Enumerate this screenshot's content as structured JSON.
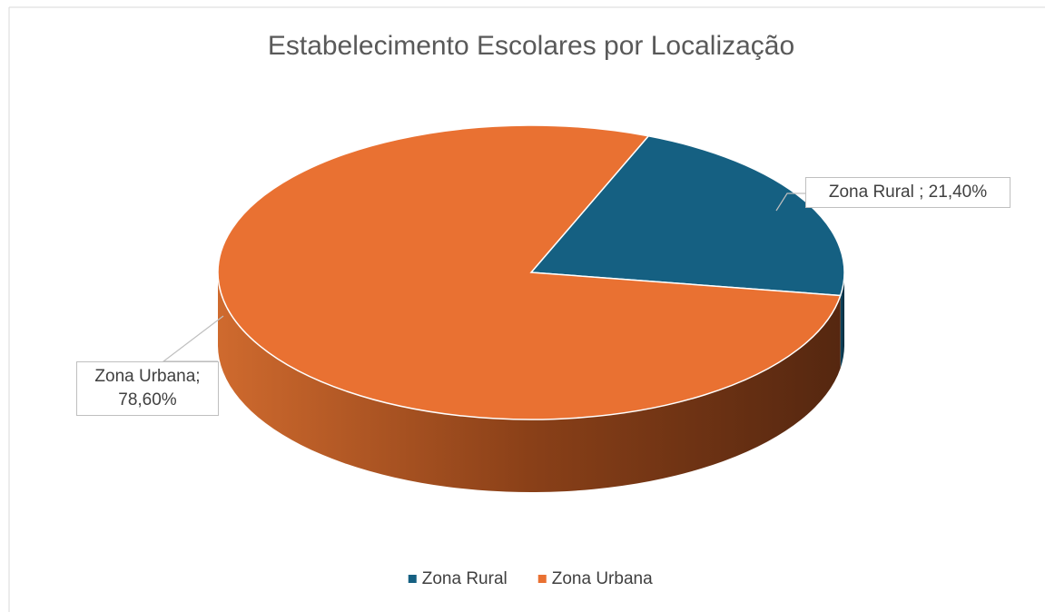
{
  "chart_data": {
    "type": "pie3d",
    "title": "Estabelecimento Escolares por Localização",
    "categories": [
      "Zona Rural",
      "Zona Urbana"
    ],
    "values": [
      21.4,
      78.6
    ],
    "value_labels": [
      "Zona Rural ; 21,40%",
      "Zona Urbana; 78,60%"
    ],
    "colors": [
      "#156082",
      "#e97132"
    ],
    "legend": "bottom"
  }
}
